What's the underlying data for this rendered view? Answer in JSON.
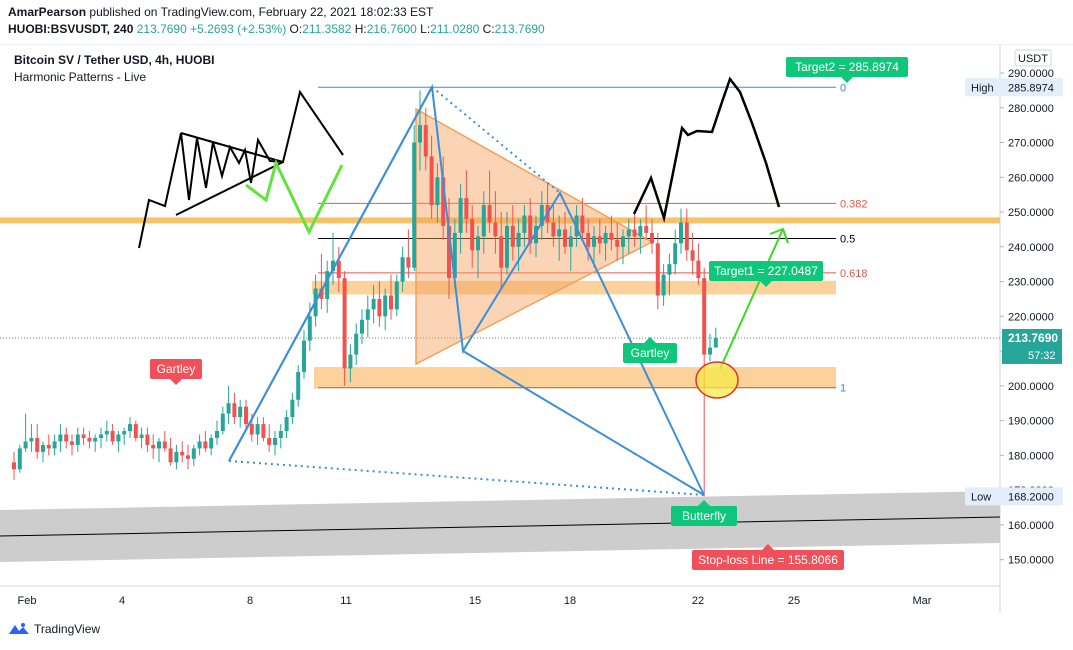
{
  "header": {
    "author": "AmarPearson",
    "published_on": "published on TradingView.com, February 22, 2021 18:02:33 EST",
    "symbol": "HUOBI:BSVUSDT, 240",
    "last": "213.7690",
    "change": "+5.2693 (+2.53%)",
    "o_label": "O:",
    "o": "211.3582",
    "h_label": "H:",
    "h": "216.7600",
    "l_label": "L:",
    "l": "211.0280",
    "c_label": "C:",
    "c": "213.7690"
  },
  "legend": {
    "title": "Bitcoin SV / Tether USD, 4h, HUOBI",
    "indicator": "Harmonic Patterns - Live"
  },
  "footer": {
    "brand": "TradingView"
  },
  "colors": {
    "up": "#26a69a",
    "down": "#ef5350",
    "pattern": "#3a8fd9",
    "triangle": "#f5a05a",
    "zone": "#fbc98a",
    "resistance": "#f7c36a",
    "fib": "#e05a4a",
    "green_label": "#0fc77b",
    "red_label": "#f0505a",
    "gray_band": "#c8c8c8"
  },
  "chart_data": {
    "type": "candlestick",
    "currency": "USDT",
    "x_ticks": [
      "Feb",
      "4",
      "8",
      "11",
      "15",
      "18",
      "22",
      "25",
      "Mar"
    ],
    "y_ticks": [
      "290.0000",
      "280.0000",
      "270.0000",
      "260.0000",
      "250.0000",
      "240.0000",
      "230.0000",
      "220.0000",
      "210.0000",
      "200.0000",
      "190.0000",
      "180.0000",
      "170.0000",
      "160.0000",
      "150.0000"
    ],
    "ylim": [
      145,
      293
    ],
    "high_label": "High",
    "high": "285.8974",
    "low_label": "Low",
    "low": "168.2000",
    "last_price": "213.7690",
    "countdown": "57:32",
    "fib_levels": [
      {
        "label": "0",
        "price": 285.9
      },
      {
        "label": "0.382",
        "price": 252.5
      },
      {
        "label": "0.5",
        "price": 242.4
      },
      {
        "label": "0.618",
        "price": 232.5
      },
      {
        "label": "1",
        "price": 199.5
      }
    ],
    "targets": [
      {
        "label": "Target2 = 285.8974",
        "price": 285.8974
      },
      {
        "label": "Target1 = 227.0487",
        "price": 227.0487
      }
    ],
    "stop_loss": {
      "label": "Stop-loss Line = 155.8066",
      "price": 155.8066
    },
    "patterns": [
      "Gartley",
      "Gartley",
      "Butterfly"
    ],
    "candles": [
      [
        178.0,
        181.0,
        173.0,
        176.0
      ],
      [
        176.0,
        183.0,
        175.0,
        182.0
      ],
      [
        182.0,
        192.0,
        181.0,
        184.0
      ],
      [
        184.0,
        189.0,
        181.0,
        185.0
      ],
      [
        185.0,
        189.0,
        179.0,
        181.0
      ],
      [
        181.0,
        184.0,
        178.0,
        183.0
      ],
      [
        183.0,
        186.0,
        180.0,
        182.0
      ],
      [
        182.0,
        186.0,
        180.0,
        184.0
      ],
      [
        184.0,
        189.0,
        181.0,
        186.0
      ],
      [
        186.0,
        188.0,
        182.0,
        184.0
      ],
      [
        184.0,
        186.0,
        180.0,
        183.0
      ],
      [
        183.0,
        188.0,
        181.0,
        186.0
      ],
      [
        186.0,
        188.0,
        183.0,
        185.0
      ],
      [
        185.0,
        187.0,
        182.0,
        184.0
      ],
      [
        184.0,
        186.0,
        181.0,
        185.0
      ],
      [
        185.0,
        188.0,
        182.0,
        186.0
      ],
      [
        186.0,
        190.0,
        184.0,
        187.0
      ],
      [
        187.0,
        189.0,
        183.0,
        184.0
      ],
      [
        184.0,
        187.0,
        181.0,
        186.0
      ],
      [
        186.0,
        188.0,
        183.0,
        187.0
      ],
      [
        187.0,
        191.0,
        185.0,
        189.0
      ],
      [
        189.0,
        190.0,
        184.0,
        185.0
      ],
      [
        185.0,
        188.0,
        182.0,
        186.0
      ],
      [
        186.0,
        188.0,
        181.0,
        183.0
      ],
      [
        183.0,
        186.0,
        179.0,
        182.0
      ],
      [
        182.0,
        185.0,
        178.0,
        184.0
      ],
      [
        184.0,
        187.0,
        181.0,
        182.0
      ],
      [
        182.0,
        185.0,
        177.0,
        178.0
      ],
      [
        178.0,
        183.0,
        176.0,
        181.0
      ],
      [
        181.0,
        184.0,
        178.0,
        180.0
      ],
      [
        180.0,
        183.0,
        176.0,
        179.0
      ],
      [
        179.0,
        183.0,
        177.0,
        182.0
      ],
      [
        182.0,
        186.0,
        180.0,
        184.0
      ],
      [
        184.0,
        187.0,
        181.0,
        182.0
      ],
      [
        182.0,
        186.0,
        180.0,
        185.0
      ],
      [
        185.0,
        190.0,
        183.0,
        187.0
      ],
      [
        187.0,
        194.0,
        186.0,
        192.0
      ],
      [
        192.0,
        200.0,
        189.0,
        195.0
      ],
      [
        195.0,
        198.0,
        189.0,
        191.0
      ],
      [
        191.0,
        196.0,
        188.0,
        194.0
      ],
      [
        194.0,
        196.0,
        188.0,
        189.0
      ],
      [
        189.0,
        192.0,
        184.0,
        186.0
      ],
      [
        186.0,
        191.0,
        183.0,
        189.0
      ],
      [
        189.0,
        191.0,
        184.0,
        185.0
      ],
      [
        185.0,
        189.0,
        181.0,
        183.0
      ],
      [
        183.0,
        187.0,
        180.0,
        185.0
      ],
      [
        185.0,
        189.0,
        182.0,
        187.0
      ],
      [
        187.0,
        193.0,
        185.0,
        191.0
      ],
      [
        191.0,
        198.0,
        189.0,
        196.0
      ],
      [
        196.0,
        206.0,
        194.0,
        204.0
      ],
      [
        204.0,
        216.0,
        202.0,
        213.0
      ],
      [
        213.0,
        224.0,
        210.0,
        220.0
      ],
      [
        220.0,
        232.0,
        217.0,
        228.0
      ],
      [
        228.0,
        238.0,
        222.0,
        225.0
      ],
      [
        225.0,
        236.0,
        221.0,
        233.0
      ],
      [
        233.0,
        244.0,
        229.0,
        236.0
      ],
      [
        236.0,
        240.0,
        227.0,
        231.0
      ],
      [
        231.0,
        233.0,
        200.0,
        205.0
      ],
      [
        205.0,
        212.0,
        201.0,
        209.0
      ],
      [
        209.0,
        218.0,
        206.0,
        215.0
      ],
      [
        215.0,
        222.0,
        212.0,
        219.0
      ],
      [
        219.0,
        226.0,
        214.0,
        222.0
      ],
      [
        222.0,
        229.0,
        218.0,
        225.0
      ],
      [
        225.0,
        230.0,
        217.0,
        220.0
      ],
      [
        220.0,
        228.0,
        216.0,
        226.0
      ],
      [
        226.0,
        232.0,
        219.0,
        222.0
      ],
      [
        222.0,
        232.0,
        220.0,
        230.0
      ],
      [
        230.0,
        240.0,
        227.0,
        237.0
      ],
      [
        237.0,
        245.0,
        231.0,
        234.0
      ],
      [
        234.0,
        275.0,
        233.0,
        270.0
      ],
      [
        270.0,
        285.0,
        262.0,
        275.0
      ],
      [
        275.0,
        280.0,
        262.0,
        266.0
      ],
      [
        266.0,
        272.0,
        248.0,
        252.0
      ],
      [
        252.0,
        264.0,
        247.0,
        260.0
      ],
      [
        260.0,
        266.0,
        242.0,
        246.0
      ],
      [
        246.0,
        254.0,
        225.0,
        231.0
      ],
      [
        231.0,
        248.0,
        228.0,
        244.0
      ],
      [
        244.0,
        258.0,
        238.0,
        254.0
      ],
      [
        254.0,
        262.0,
        244.0,
        248.0
      ],
      [
        248.0,
        252.0,
        234.0,
        239.0
      ],
      [
        239.0,
        246.0,
        231.0,
        243.0
      ],
      [
        243.0,
        256.0,
        238.0,
        252.0
      ],
      [
        252.0,
        262.0,
        244.0,
        247.0
      ],
      [
        247.0,
        256.0,
        238.0,
        243.0
      ],
      [
        243.0,
        250.0,
        228.0,
        234.0
      ],
      [
        234.0,
        250.0,
        232.0,
        246.0
      ],
      [
        246.0,
        252.0,
        236.0,
        240.0
      ],
      [
        240.0,
        248.0,
        233.0,
        244.0
      ],
      [
        244.0,
        252.0,
        240.0,
        249.0
      ],
      [
        249.0,
        254.0,
        238.0,
        241.0
      ],
      [
        241.0,
        249.0,
        237.0,
        246.0
      ],
      [
        246.0,
        256.0,
        242.0,
        252.0
      ],
      [
        252.0,
        258.0,
        244.0,
        247.0
      ],
      [
        247.0,
        252.0,
        240.0,
        243.0
      ],
      [
        243.0,
        249.0,
        236.0,
        245.0
      ],
      [
        245.0,
        250.0,
        238.0,
        240.0
      ],
      [
        240.0,
        246.0,
        233.0,
        243.0
      ],
      [
        243.0,
        252.0,
        240.0,
        249.0
      ],
      [
        249.0,
        254.0,
        242.0,
        244.0
      ],
      [
        244.0,
        248.0,
        236.0,
        240.0
      ],
      [
        240.0,
        246.0,
        234.0,
        243.0
      ],
      [
        243.0,
        248.0,
        238.0,
        241.0
      ],
      [
        241.0,
        246.0,
        236.0,
        244.0
      ],
      [
        244.0,
        249.0,
        239.0,
        242.0
      ],
      [
        242.0,
        247.0,
        236.0,
        240.0
      ],
      [
        240.0,
        245.0,
        235.0,
        243.0
      ],
      [
        243.0,
        248.0,
        238.0,
        245.0
      ],
      [
        245.0,
        250.0,
        240.0,
        243.0
      ],
      [
        243.0,
        248.0,
        238.0,
        246.0
      ],
      [
        246.0,
        252.0,
        242.0,
        244.0
      ],
      [
        244.0,
        248.0,
        238.0,
        241.0
      ],
      [
        241.0,
        244.0,
        222.0,
        226.0
      ],
      [
        226.0,
        235.0,
        223.0,
        232.0
      ],
      [
        232.0,
        238.0,
        226.0,
        235.0
      ],
      [
        235.0,
        245.0,
        232.0,
        241.0
      ],
      [
        241.0,
        251.0,
        238.0,
        247.0
      ],
      [
        247.0,
        251.0,
        236.0,
        239.0
      ],
      [
        239.0,
        244.0,
        232.0,
        236.0
      ],
      [
        236.0,
        241.0,
        229.0,
        231.0
      ],
      [
        231.0,
        234.0,
        168.2,
        209.0
      ],
      [
        209.0,
        215.0,
        207.0,
        211.0
      ],
      [
        211.0,
        216.76,
        211.028,
        213.769
      ]
    ]
  }
}
